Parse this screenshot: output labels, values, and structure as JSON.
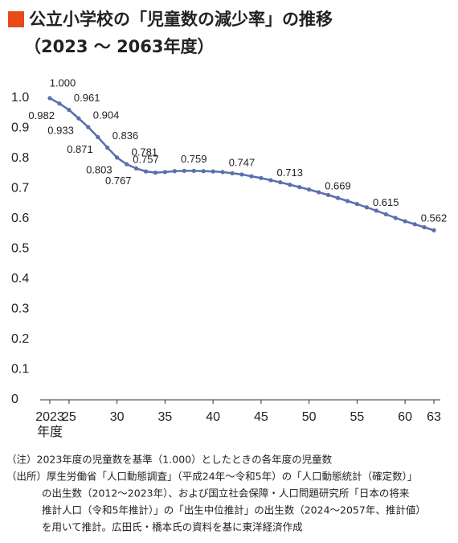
{
  "chart_data": {
    "type": "line",
    "title": "公立小学校の「児童数の減少率」の推移",
    "subtitle": "（2023 ～ 2063年度）",
    "x_label": "年度",
    "x": [
      2023,
      2024,
      2025,
      2026,
      2027,
      2028,
      2029,
      2030,
      2031,
      2032,
      2033,
      2034,
      2035,
      2036,
      2037,
      2038,
      2039,
      2040,
      2041,
      2042,
      2043,
      2044,
      2045,
      2046,
      2047,
      2048,
      2049,
      2050,
      2051,
      2052,
      2053,
      2054,
      2055,
      2056,
      2057,
      2058,
      2059,
      2060,
      2061,
      2062,
      2063
    ],
    "series": [
      {
        "name": null,
        "color": "#5a6fae",
        "values": [
          1.0,
          0.982,
          0.961,
          0.933,
          0.904,
          0.871,
          0.836,
          0.803,
          0.781,
          0.767,
          0.757,
          0.753,
          0.755,
          0.758,
          0.759,
          0.759,
          0.758,
          0.757,
          0.755,
          0.751,
          0.747,
          0.741,
          0.735,
          0.728,
          0.721,
          0.713,
          0.705,
          0.697,
          0.688,
          0.679,
          0.669,
          0.659,
          0.649,
          0.638,
          0.627,
          0.615,
          0.603,
          0.592,
          0.582,
          0.572,
          0.562
        ],
        "value_labels": [
          "1.000",
          "0.982",
          "0.961",
          "0.933",
          "0.904",
          "0.871",
          "0.836",
          "0.803",
          "0.781",
          "0.767",
          "0.757",
          null,
          null,
          null,
          null,
          "0.759",
          null,
          null,
          null,
          null,
          "0.747",
          null,
          null,
          null,
          null,
          "0.713",
          null,
          null,
          null,
          null,
          "0.669",
          null,
          null,
          null,
          null,
          "0.615",
          null,
          null,
          null,
          null,
          "0.562"
        ]
      }
    ],
    "xlim": [
      2023,
      2063
    ],
    "xticks": [
      2023,
      {
        "value": 2025,
        "label": "25"
      },
      {
        "value": 2030,
        "label": "30"
      },
      {
        "value": 2035,
        "label": "35"
      },
      {
        "value": 2040,
        "label": "40"
      },
      {
        "value": 2045,
        "label": "45"
      },
      {
        "value": 2050,
        "label": "50"
      },
      {
        "value": 2055,
        "label": "55"
      },
      {
        "value": 2060,
        "label": "60"
      },
      {
        "value": 2063,
        "label": "63"
      }
    ],
    "ylim": [
      0,
      1
    ],
    "yticks": [
      0,
      0.1,
      0.2,
      0.3,
      0.4,
      0.5,
      0.6,
      0.7,
      0.8,
      0.9,
      {
        "value": 1,
        "label": "1.0"
      }
    ],
    "grid": false,
    "notes": [
      "（注）2023年度の児童数を基準（1.000）としたときの各年度の児童数",
      "（出所）厚生労働省「人口動態調査」（平成24年～令和5年）の「人口動態統計（確定数）」",
      "の出生数（2012～2023年）、および国立社会保障・人口問題研究所「日本の将来",
      "推計人口（令和5年推計）」の「出生中位推計」の出生数（2024～2057年、推計値）",
      "を用いて推計。広田氏・橋本氏の資料を基に東洋経済作成"
    ]
  }
}
